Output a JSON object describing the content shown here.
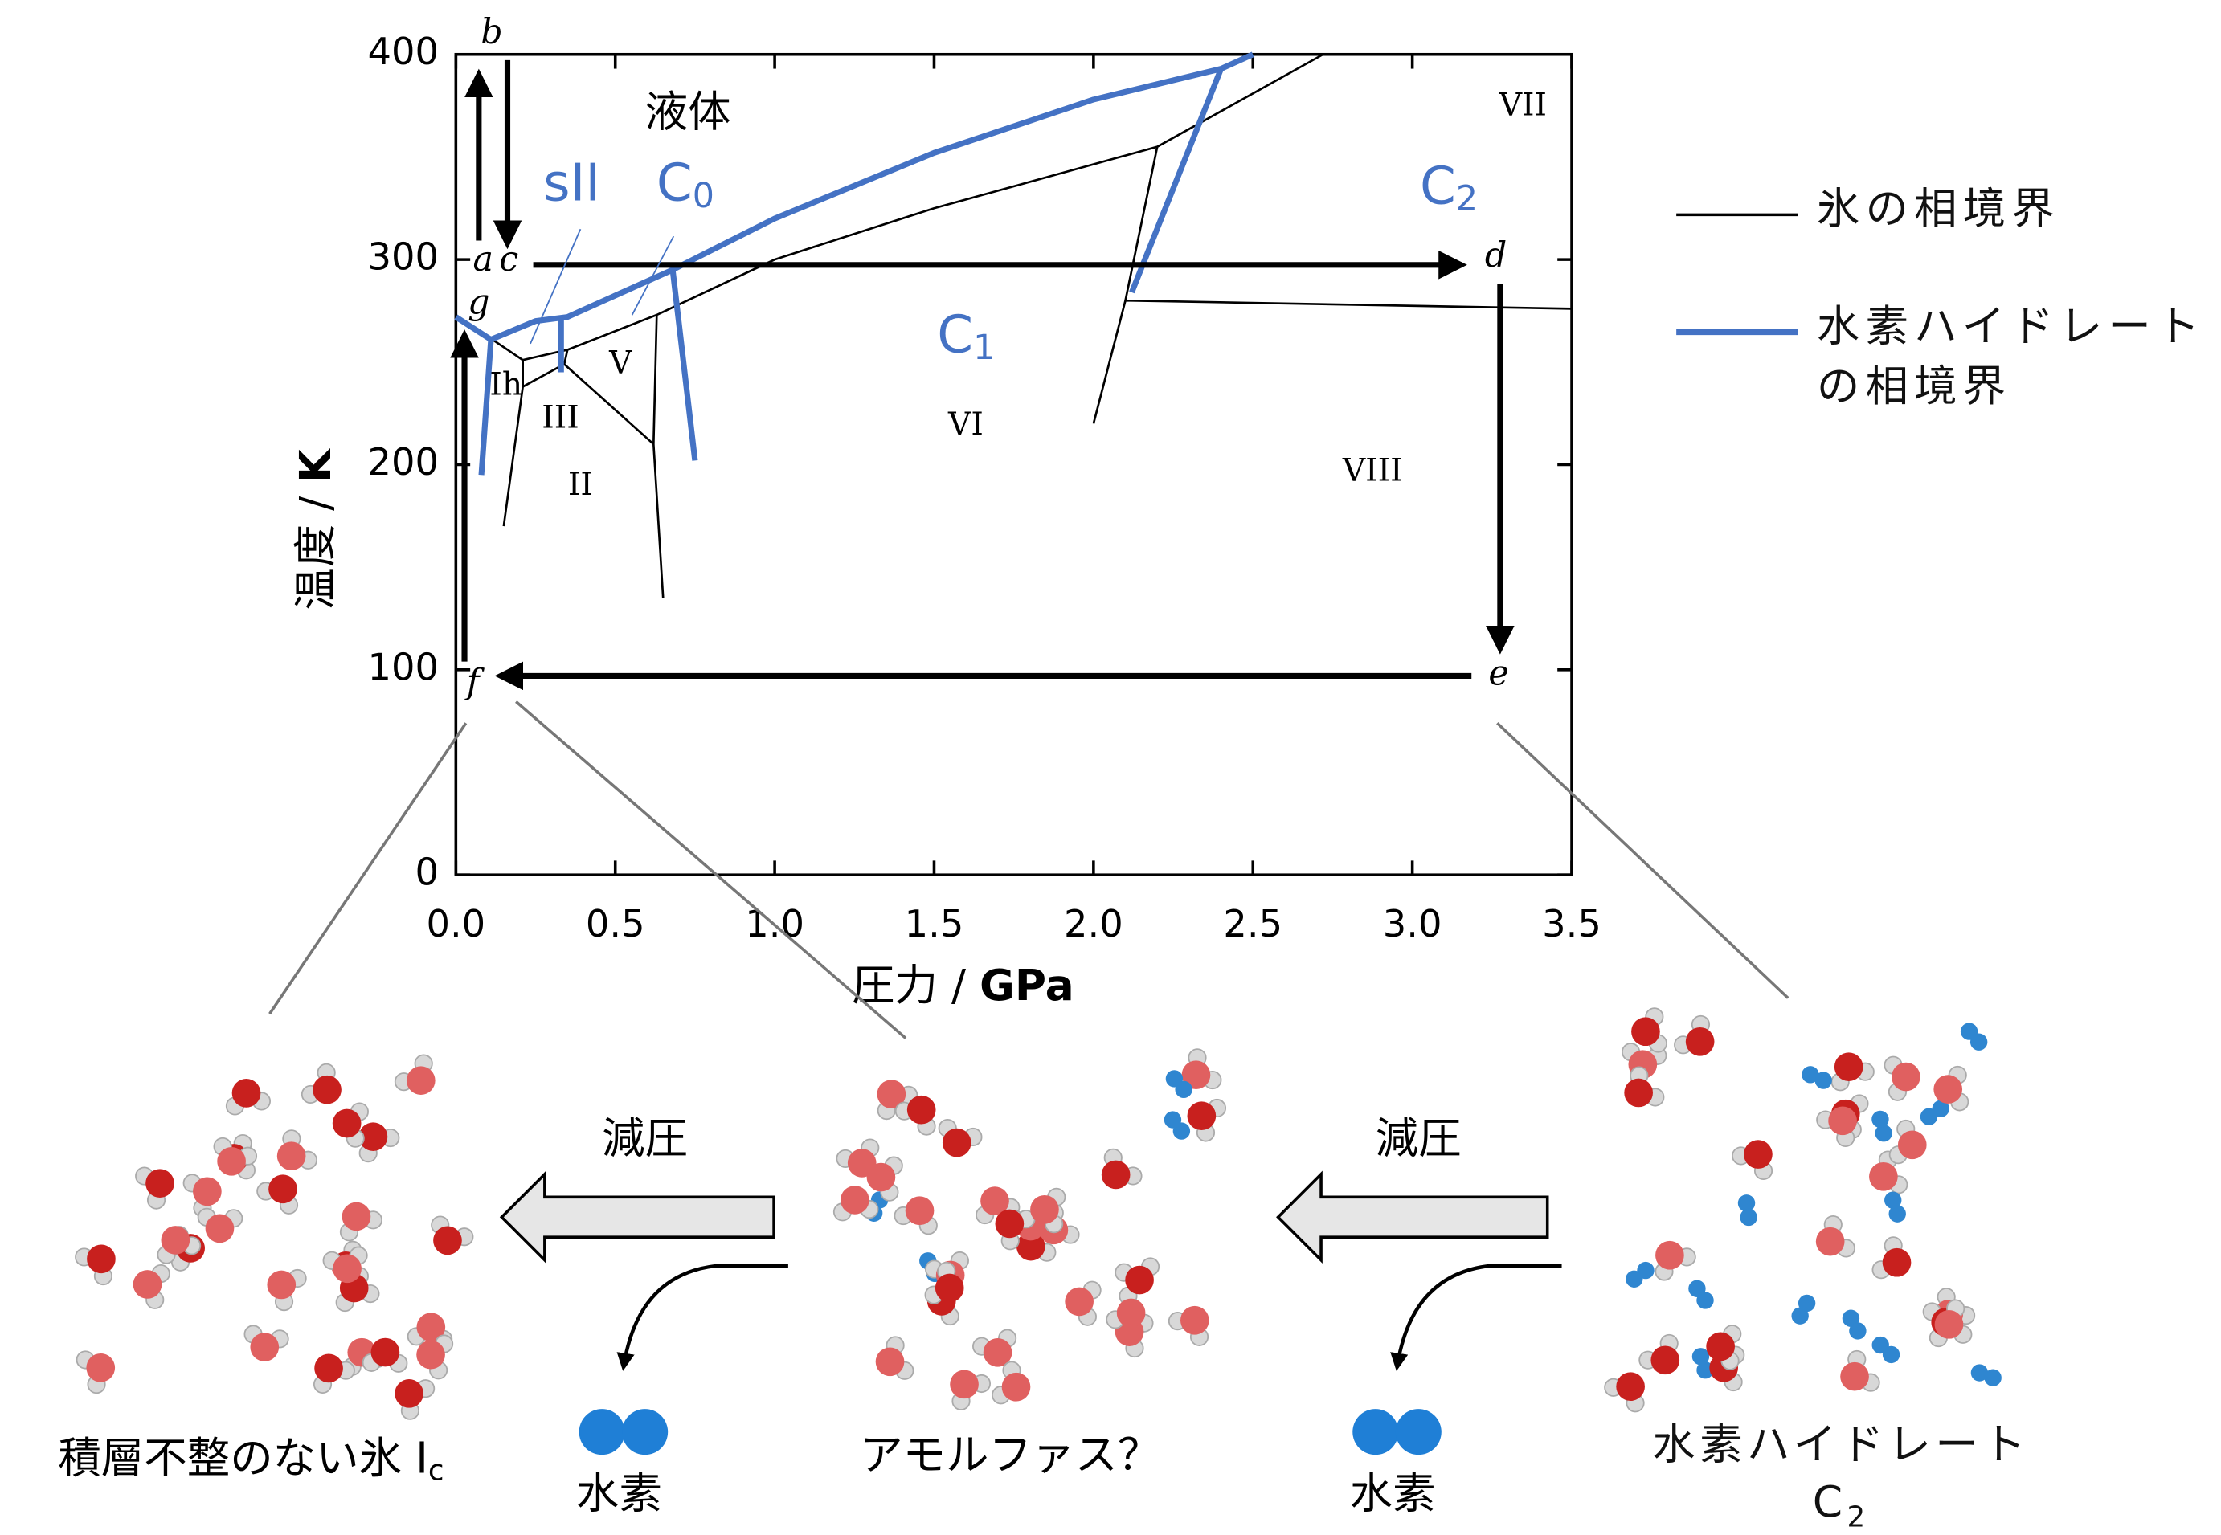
{
  "chart_data": {
    "type": "line",
    "xlabel": {
      "text": "圧力 / ",
      "bold": "GPa"
    },
    "ylabel": {
      "text": "温度 / ",
      "bold": "K"
    },
    "xlim": [
      0,
      3.5
    ],
    "ylim": [
      0,
      400
    ],
    "xticks": [
      {
        "value": 0,
        "label": "0.0"
      },
      0.5,
      {
        "value": 1,
        "label": "1.0"
      },
      1.5,
      {
        "value": 2,
        "label": "2.0"
      },
      2.5,
      {
        "value": 3,
        "label": "3.0"
      },
      3.5
    ],
    "yticks": [
      0,
      100,
      200,
      300,
      400
    ],
    "legend": "right",
    "series": [
      {
        "name": "氷の相境界",
        "color": "#000000",
        "x": [
          0,
          0.21,
          null,
          0.21,
          0.21,
          0.15,
          null,
          0.21,
          0.35,
          null,
          0.21,
          0.34,
          0.35,
          null,
          0.34,
          0.62,
          null,
          0.35,
          0.63,
          0.62,
          0.65,
          null,
          0.63,
          1.0,
          1.5,
          2.2,
          2.72,
          null,
          2.2,
          2.1,
          2.0,
          null,
          2.1,
          3.5
        ],
        "values": [
          273,
          251,
          null,
          251,
          238,
          170,
          null,
          251,
          256,
          null,
          238,
          249,
          256,
          null,
          249,
          210,
          null,
          256,
          273,
          210,
          135,
          null,
          273,
          300,
          325,
          355,
          400,
          null,
          355,
          280,
          220,
          null,
          280,
          276
        ]
      },
      {
        "name": "水素ハイドレートの相境界",
        "color": "#4472c4",
        "x": [
          0,
          0.11,
          0.08,
          null,
          0.11,
          0.25,
          0.35,
          0.68,
          0.75,
          null,
          0.33,
          0.33,
          null,
          0.68,
          1.0,
          1.5,
          2.0,
          2.4,
          2.5,
          null,
          2.4,
          2.12
        ],
        "values": [
          272,
          261,
          195,
          null,
          261,
          270,
          272,
          295,
          202,
          null,
          272,
          245,
          null,
          295,
          320,
          352,
          378,
          393,
          400,
          null,
          393,
          284
        ]
      }
    ],
    "phase_labels": [
      "液体",
      "VII",
      "V",
      "Ih",
      "III",
      "VI",
      "VIII",
      "II"
    ],
    "hydrate_labels": [
      {
        "text": "sII"
      },
      {
        "text": "C",
        "sub": "0"
      },
      {
        "text": "C",
        "sub": "1"
      },
      {
        "text": "C",
        "sub": "2"
      }
    ],
    "path_labels": [
      "a",
      "b",
      "c",
      "d",
      "e",
      "f",
      "g"
    ]
  },
  "bottom": {
    "step_label": "減圧",
    "released": "水素",
    "left_caption": {
      "text": "積層不整のない氷 I",
      "sub": "c"
    },
    "middle_caption": "アモルファス？",
    "right_caption": {
      "text": "水素ハイドレート C",
      "sub": "2"
    }
  }
}
